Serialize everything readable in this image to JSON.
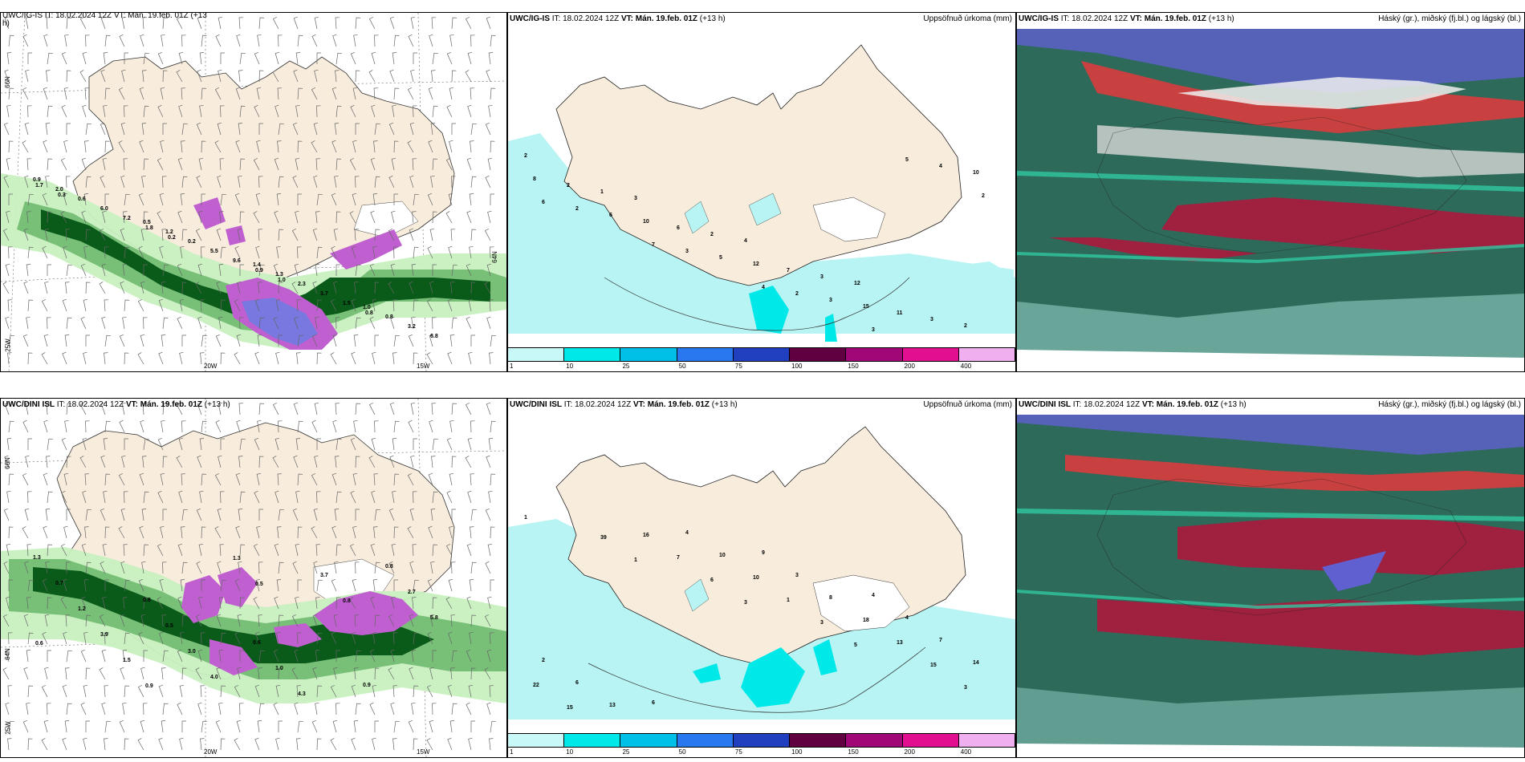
{
  "panels": {
    "top_left": {
      "header_top_cut": "UWC/IG-IS IT: 18.02.2024 12Z VT: Mán. 19.feb. 01Z (+13",
      "header_line2": "h)",
      "ax_left_top": "66N",
      "ax_left_mid": "64N",
      "ax_left_bottom": "25W",
      "ax_bottom_a": "20W",
      "ax_bottom_b": "15W"
    },
    "top_mid": {
      "model": "UWC/IG-IS",
      "it": "IT: 18.02.2024 12Z",
      "vt": "VT: Mán. 19.feb. 01Z",
      "lead": "(+13 h)",
      "right": "Uppsöfnuð úrkoma (mm)"
    },
    "top_right": {
      "model": "UWC/IG-IS",
      "it": "IT: 18.02.2024 12Z",
      "vt": "VT: Mán. 19.feb. 01Z",
      "lead": "(+13 h)",
      "right": "Háský (gr.), miðský (fj.bl.) og lágský (bl.)"
    },
    "bottom_left": {
      "model": "UWC/DINI ISL",
      "it": "IT: 18.02.2024 12Z",
      "vt": "VT: Mán. 19.feb. 01Z",
      "lead": "(+13 h)",
      "ax_left_top": "66N",
      "ax_left_mid": "64N",
      "ax_left_bottom": "25W",
      "ax_bottom_a": "20W",
      "ax_bottom_b": "15W"
    },
    "bottom_mid": {
      "model": "UWC/DINI ISL",
      "it": "IT: 18.02.2024 12Z",
      "vt": "VT: Mán. 19.feb. 01Z",
      "lead": "(+13 h)",
      "right": "Uppsöfnuð úrkoma (mm)"
    },
    "bottom_right": {
      "model": "UWC/DINI ISL",
      "it": "IT: 18.02.2024 12Z",
      "vt": "VT: Mán. 19.feb. 01Z",
      "lead": "(+13 h)",
      "right": "Háský (gr.), miðský (fj.bl.) og lágský (bl.)"
    }
  },
  "colorbar": {
    "labels": [
      "1",
      "10",
      "25",
      "50",
      "75",
      "100",
      "150",
      "200",
      "400"
    ],
    "colors": [
      "#c8f8f8",
      "#00e8e8",
      "#00c0e8",
      "#2878f0",
      "#2040c0",
      "#600040",
      "#a00878",
      "#e01090",
      "#f0b0f0"
    ]
  },
  "precip_labels_top": [
    "2",
    "3",
    "4",
    "12",
    "2",
    "1",
    "2",
    "3",
    "3",
    "2",
    "6",
    "7",
    "11",
    "8",
    "10",
    "12",
    "15",
    "10",
    "6",
    "5",
    "3",
    "4",
    "2",
    "3",
    "2",
    "5",
    "6",
    "7",
    "4",
    "3",
    "2"
  ],
  "precip_labels_bottom": [
    "1",
    "1",
    "3",
    "5",
    "3",
    "39",
    "6",
    "3",
    "15",
    "15",
    "7",
    "1",
    "13",
    "22",
    "16",
    "10",
    "18",
    "14",
    "13",
    "10",
    "8",
    "7",
    "6",
    "4",
    "3",
    "4",
    "2",
    "6",
    "9",
    "4"
  ],
  "wind_labels_top": [
    "0.9",
    "0.5",
    "1.4",
    "1.0",
    "2.0",
    "1.2",
    "1.3",
    "0.8",
    "0.6",
    "0.2",
    "2.3",
    "3.2",
    "6.0",
    "5.5",
    "3.7",
    "6.8",
    "7.2",
    "9.6",
    "1.5",
    "1.7",
    "1.8",
    "0.9",
    "0.8",
    "0.3",
    "0.2",
    "1.0"
  ],
  "wind_labels_bottom": [
    "1.3",
    "0.8",
    "0.6",
    "0.9",
    "0.7",
    "0.5",
    "1.0",
    "0.8",
    "1.2",
    "3.0",
    "4.3",
    "2.7",
    "3.9",
    "4.0",
    "3.7",
    "5.8",
    "1.5",
    "1.3",
    "0.8",
    "0.6",
    "0.9",
    "0.5"
  ],
  "colors": {
    "land": "#f8ecdc",
    "sea": "#ffffff",
    "precip_light": "#b8f4f4",
    "green_light": "#c8f0c0",
    "green_mid": "#78c078",
    "green_dark": "#0a5a1a",
    "purple": "#c060d0",
    "cloud_dark_green": "#2e6a5a",
    "cloud_red": "#a02040",
    "cloud_blue": "#6060d0",
    "cloud_teal": "#30c8a0"
  }
}
